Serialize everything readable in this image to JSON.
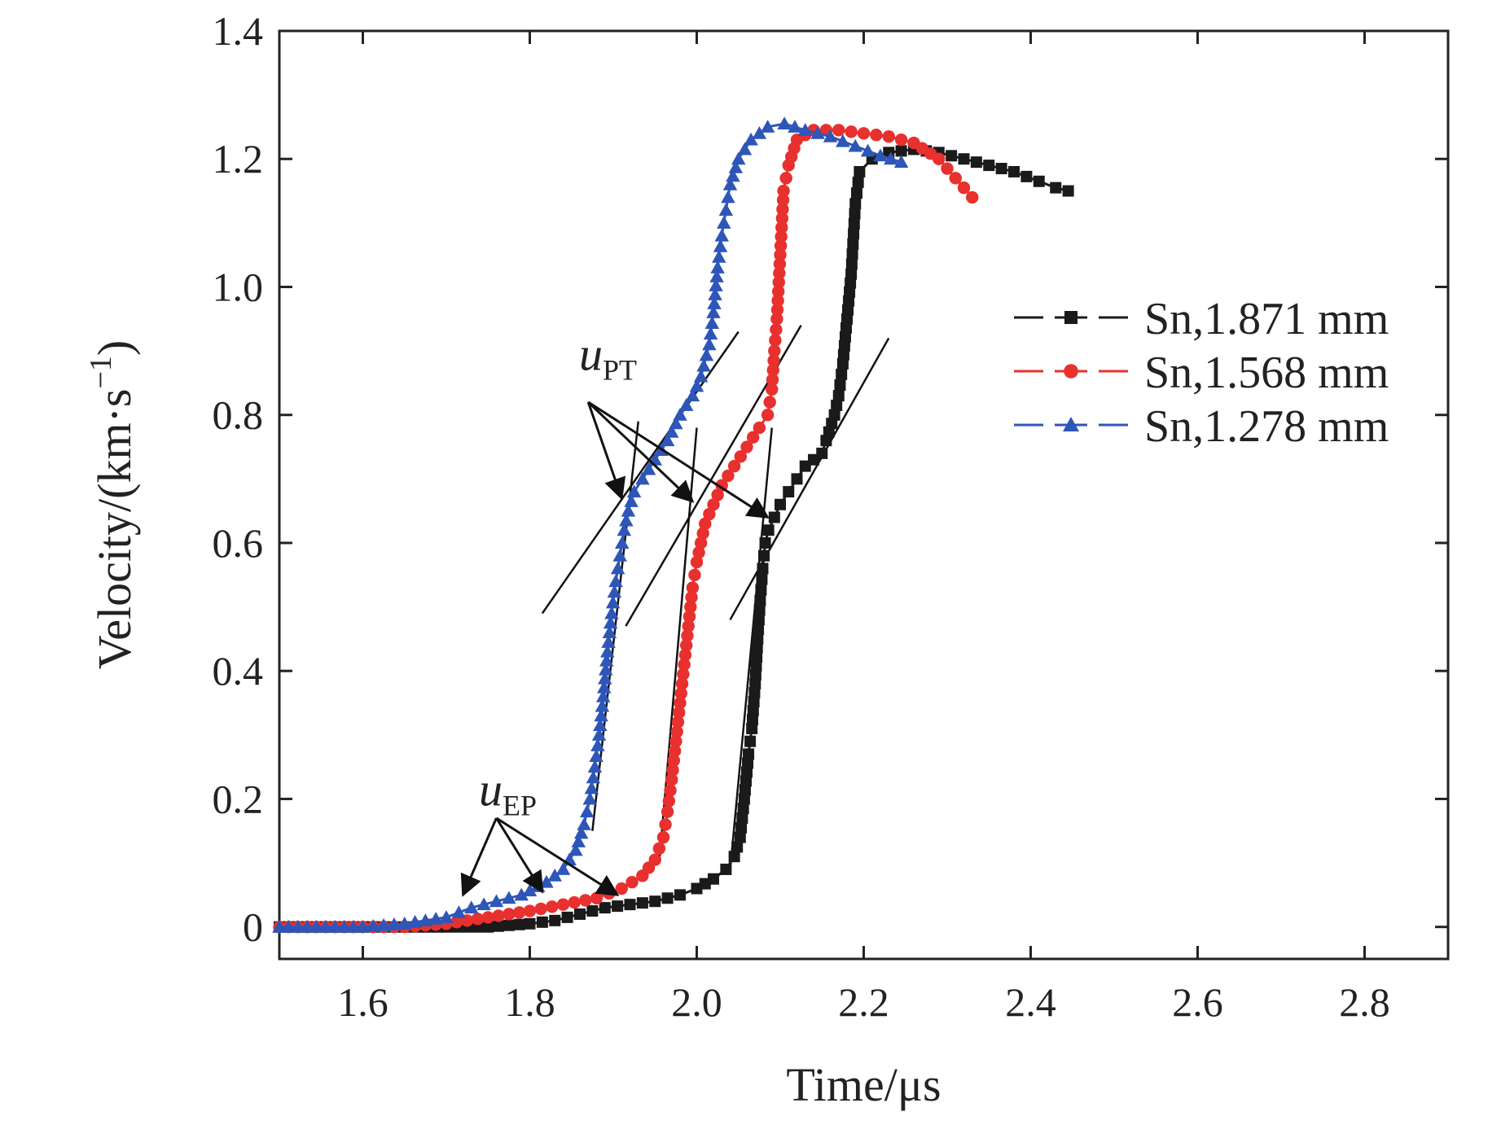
{
  "chart_data": {
    "type": "scatter",
    "title": "",
    "xlabel": "Time/μs",
    "ylabel_parts": [
      "Velocity/(km·s",
      "−1",
      ")"
    ],
    "xlim": [
      1.5,
      2.9
    ],
    "ylim": [
      -0.05,
      1.4
    ],
    "xticks": [
      1.6,
      1.8,
      2.0,
      2.2,
      2.4,
      2.6,
      2.8
    ],
    "xtick_labels": [
      "1.6",
      "1.8",
      "2.0",
      "2.2",
      "2.4",
      "2.6",
      "2.8"
    ],
    "yticks": [
      0,
      0.2,
      0.4,
      0.6,
      0.8,
      1.0,
      1.2,
      1.4
    ],
    "ytick_labels": [
      "0",
      "0.2",
      "0.4",
      "0.6",
      "0.8",
      "1.0",
      "1.2",
      "1.4"
    ],
    "legend_position": "right",
    "series": [
      {
        "name": "Sn,1.871 mm",
        "color": "#1a1a1a",
        "marker": "square",
        "points": [
          [
            1.5,
            0.0
          ],
          [
            1.6,
            0.0
          ],
          [
            1.7,
            0.0
          ],
          [
            1.75,
            0.0
          ],
          [
            1.8,
            0.005
          ],
          [
            1.83,
            0.01
          ],
          [
            1.86,
            0.02
          ],
          [
            1.89,
            0.03
          ],
          [
            1.92,
            0.035
          ],
          [
            1.95,
            0.04
          ],
          [
            1.98,
            0.05
          ],
          [
            2.0,
            0.06
          ],
          [
            2.02,
            0.075
          ],
          [
            2.035,
            0.09
          ],
          [
            2.045,
            0.11
          ],
          [
            2.052,
            0.14
          ],
          [
            2.057,
            0.2
          ],
          [
            2.062,
            0.27
          ],
          [
            2.066,
            0.31
          ],
          [
            2.07,
            0.38
          ],
          [
            2.073,
            0.45
          ],
          [
            2.076,
            0.51
          ],
          [
            2.079,
            0.56
          ],
          [
            2.082,
            0.6
          ],
          [
            2.086,
            0.62
          ],
          [
            2.093,
            0.64
          ],
          [
            2.1,
            0.66
          ],
          [
            2.11,
            0.68
          ],
          [
            2.12,
            0.7
          ],
          [
            2.13,
            0.72
          ],
          [
            2.15,
            0.74
          ],
          [
            2.155,
            0.76
          ],
          [
            2.165,
            0.8
          ],
          [
            2.17,
            0.83
          ],
          [
            2.175,
            0.88
          ],
          [
            2.18,
            0.95
          ],
          [
            2.185,
            1.02
          ],
          [
            2.19,
            1.13
          ],
          [
            2.195,
            1.18
          ],
          [
            2.21,
            1.2
          ],
          [
            2.23,
            1.21
          ],
          [
            2.26,
            1.215
          ],
          [
            2.29,
            1.21
          ],
          [
            2.32,
            1.2
          ],
          [
            2.35,
            1.19
          ],
          [
            2.38,
            1.18
          ],
          [
            2.41,
            1.165
          ],
          [
            2.43,
            1.155
          ],
          [
            2.445,
            1.15
          ]
        ],
        "tangent_lines": [
          [
            [
              2.04,
              0.09
            ],
            [
              2.09,
              0.78
            ]
          ],
          [
            [
              2.04,
              0.48
            ],
            [
              2.23,
              0.92
            ]
          ]
        ]
      },
      {
        "name": "Sn,1.568 mm",
        "color": "#e8302e",
        "marker": "circle",
        "points": [
          [
            1.5,
            0.0
          ],
          [
            1.6,
            0.0
          ],
          [
            1.65,
            0.0
          ],
          [
            1.7,
            0.005
          ],
          [
            1.75,
            0.015
          ],
          [
            1.8,
            0.025
          ],
          [
            1.84,
            0.035
          ],
          [
            1.88,
            0.045
          ],
          [
            1.91,
            0.06
          ],
          [
            1.935,
            0.08
          ],
          [
            1.95,
            0.105
          ],
          [
            1.96,
            0.14
          ],
          [
            1.965,
            0.18
          ],
          [
            1.97,
            0.23
          ],
          [
            1.975,
            0.29
          ],
          [
            1.98,
            0.35
          ],
          [
            1.985,
            0.41
          ],
          [
            1.99,
            0.47
          ],
          [
            1.995,
            0.53
          ],
          [
            2.0,
            0.57
          ],
          [
            2.005,
            0.6
          ],
          [
            2.01,
            0.63
          ],
          [
            2.02,
            0.66
          ],
          [
            2.03,
            0.69
          ],
          [
            2.045,
            0.72
          ],
          [
            2.06,
            0.75
          ],
          [
            2.075,
            0.78
          ],
          [
            2.085,
            0.8
          ],
          [
            2.09,
            0.84
          ],
          [
            2.093,
            0.9
          ],
          [
            2.096,
            0.95
          ],
          [
            2.1,
            1.05
          ],
          [
            2.104,
            1.15
          ],
          [
            2.11,
            1.19
          ],
          [
            2.12,
            1.23
          ],
          [
            2.14,
            1.245
          ],
          [
            2.17,
            1.245
          ],
          [
            2.2,
            1.24
          ],
          [
            2.23,
            1.235
          ],
          [
            2.26,
            1.225
          ],
          [
            2.29,
            1.2
          ],
          [
            2.31,
            1.17
          ],
          [
            2.33,
            1.14
          ]
        ],
        "tangent_lines": [
          [
            [
              1.955,
              0.1
            ],
            [
              2.0,
              0.78
            ]
          ],
          [
            [
              1.915,
              0.47
            ],
            [
              2.125,
              0.94
            ]
          ]
        ]
      },
      {
        "name": "Sn,1.278 mm",
        "color": "#2e56b8",
        "marker": "triangle",
        "points": [
          [
            1.5,
            0.0
          ],
          [
            1.6,
            0.0
          ],
          [
            1.65,
            0.005
          ],
          [
            1.7,
            0.015
          ],
          [
            1.73,
            0.03
          ],
          [
            1.76,
            0.04
          ],
          [
            1.79,
            0.05
          ],
          [
            1.82,
            0.07
          ],
          [
            1.84,
            0.09
          ],
          [
            1.855,
            0.12
          ],
          [
            1.865,
            0.16
          ],
          [
            1.872,
            0.2
          ],
          [
            1.878,
            0.25
          ],
          [
            1.883,
            0.3
          ],
          [
            1.888,
            0.36
          ],
          [
            1.893,
            0.43
          ],
          [
            1.898,
            0.49
          ],
          [
            1.903,
            0.54
          ],
          [
            1.908,
            0.58
          ],
          [
            1.913,
            0.62
          ],
          [
            1.918,
            0.65
          ],
          [
            1.925,
            0.68
          ],
          [
            1.935,
            0.7
          ],
          [
            1.95,
            0.73
          ],
          [
            1.965,
            0.76
          ],
          [
            1.98,
            0.8
          ],
          [
            1.995,
            0.83
          ],
          [
            2.005,
            0.86
          ],
          [
            2.015,
            0.91
          ],
          [
            2.02,
            0.96
          ],
          [
            2.025,
            1.03
          ],
          [
            2.03,
            1.08
          ],
          [
            2.035,
            1.12
          ],
          [
            2.04,
            1.16
          ],
          [
            2.05,
            1.2
          ],
          [
            2.065,
            1.23
          ],
          [
            2.085,
            1.25
          ],
          [
            2.105,
            1.255
          ],
          [
            2.13,
            1.245
          ],
          [
            2.16,
            1.235
          ],
          [
            2.19,
            1.22
          ],
          [
            2.22,
            1.205
          ],
          [
            2.245,
            1.195
          ]
        ],
        "tangent_lines": [
          [
            [
              1.875,
              0.15
            ],
            [
              1.93,
              0.79
            ]
          ],
          [
            [
              1.815,
              0.49
            ],
            [
              2.05,
              0.93
            ]
          ]
        ]
      }
    ],
    "annotations": [
      {
        "label_main": "u",
        "label_sub": "PT",
        "anchor": [
          1.86,
          0.87
        ],
        "arrow_tail": [
          1.87,
          0.82
        ],
        "targets": [
          [
            1.91,
            0.67
          ],
          [
            1.995,
            0.665
          ],
          [
            2.085,
            0.64
          ]
        ]
      },
      {
        "label_main": "u",
        "label_sub": "EP",
        "anchor": [
          1.74,
          0.19
        ],
        "arrow_tail": [
          1.76,
          0.17
        ],
        "targets": [
          [
            1.72,
            0.05
          ],
          [
            1.815,
            0.055
          ],
          [
            1.905,
            0.05
          ]
        ]
      }
    ]
  }
}
